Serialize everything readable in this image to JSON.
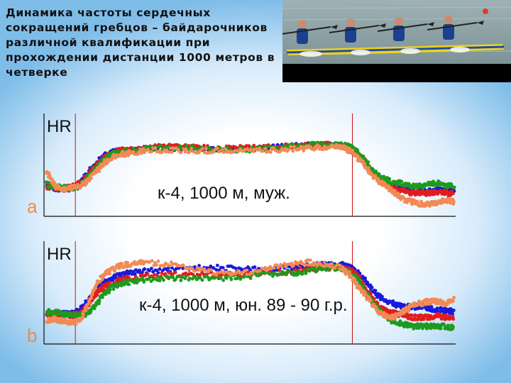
{
  "title": "Динамика частоты сердечных сокращений гребцов – байдарочников различной квалификации при прохождении дистанции 1000 метров в четверке",
  "photo": {
    "icon": "kayak-four-rowers-photo"
  },
  "colors": {
    "blue": "#1a1adc",
    "red": "#e21d1d",
    "green": "#1e9a1e",
    "orange": "#f28a55",
    "marker_line": "#cc1111",
    "panel_label": "#f08a4c"
  },
  "chart_data": [
    {
      "type": "scatter",
      "panel_label": "a",
      "ylabel": "HR",
      "annotation": "к-4, 1000 м, муж.",
      "xlim": [
        0,
        100
      ],
      "ylim": [
        0,
        100
      ],
      "markers_x": [
        7,
        75
      ],
      "series": [
        {
          "color": "#1a1adc",
          "x": [
            0,
            2,
            4,
            6,
            8,
            10,
            12,
            14,
            16,
            18,
            20,
            24,
            30,
            36,
            42,
            48,
            54,
            60,
            64,
            68,
            72,
            74,
            76,
            78,
            80,
            82,
            84,
            86,
            88,
            90,
            92,
            94,
            96,
            98,
            100
          ],
          "y": [
            30,
            28,
            26,
            28,
            32,
            44,
            56,
            64,
            68,
            70,
            70,
            72,
            73,
            72,
            72,
            72,
            73,
            75,
            76,
            77,
            76,
            72,
            66,
            56,
            44,
            36,
            30,
            28,
            26,
            24,
            24,
            24,
            26,
            24,
            26
          ]
        },
        {
          "color": "#e21d1d",
          "x": [
            0,
            2,
            4,
            6,
            8,
            10,
            12,
            14,
            16,
            18,
            20,
            24,
            30,
            36,
            42,
            48,
            54,
            60,
            64,
            68,
            72,
            74,
            76,
            78,
            80,
            82,
            84,
            86,
            88,
            90,
            92,
            94,
            96,
            98,
            100
          ],
          "y": [
            29,
            28,
            27,
            29,
            33,
            42,
            52,
            62,
            66,
            70,
            71,
            73,
            76,
            74,
            72,
            73,
            74,
            75,
            76,
            77,
            76,
            74,
            68,
            58,
            46,
            36,
            30,
            26,
            24,
            22,
            22,
            22,
            24,
            22,
            22
          ]
        },
        {
          "color": "#1e9a1e",
          "x": [
            0,
            2,
            4,
            6,
            8,
            10,
            12,
            14,
            16,
            18,
            20,
            24,
            30,
            36,
            42,
            48,
            54,
            60,
            64,
            68,
            72,
            74,
            76,
            78,
            80,
            82,
            84,
            86,
            88,
            90,
            92,
            94,
            96,
            98,
            100
          ],
          "y": [
            32,
            30,
            28,
            28,
            30,
            40,
            50,
            60,
            66,
            68,
            69,
            72,
            74,
            73,
            72,
            71,
            72,
            75,
            76,
            78,
            77,
            75,
            70,
            60,
            48,
            40,
            36,
            34,
            32,
            30,
            30,
            32,
            34,
            30,
            30
          ]
        },
        {
          "color": "#f28a55",
          "x": [
            0,
            2,
            4,
            6,
            8,
            10,
            12,
            14,
            16,
            18,
            20,
            24,
            30,
            36,
            42,
            48,
            54,
            60,
            64,
            68,
            72,
            74,
            76,
            78,
            80,
            82,
            84,
            86,
            88,
            90,
            92,
            94,
            96,
            98,
            100
          ],
          "y": [
            46,
            30,
            26,
            28,
            30,
            36,
            46,
            56,
            62,
            66,
            67,
            70,
            71,
            70,
            70,
            70,
            70,
            72,
            73,
            74,
            74,
            71,
            64,
            54,
            42,
            34,
            28,
            20,
            14,
            12,
            10,
            10,
            12,
            14,
            12
          ]
        }
      ]
    },
    {
      "type": "scatter",
      "panel_label": "b",
      "ylabel": "HR",
      "annotation": "к-4, 1000 м, юн. 89 - 90 г.р.",
      "xlim": [
        0,
        100
      ],
      "ylim": [
        0,
        100
      ],
      "markers_x": [
        7,
        75
      ],
      "series": [
        {
          "color": "#1a1adc",
          "x": [
            0,
            2,
            4,
            6,
            8,
            10,
            12,
            14,
            16,
            18,
            20,
            24,
            30,
            36,
            42,
            48,
            54,
            60,
            64,
            68,
            72,
            74,
            76,
            78,
            80,
            82,
            84,
            86,
            88,
            90,
            92,
            94,
            96,
            98,
            100
          ],
          "y": [
            30,
            30,
            30,
            30,
            34,
            44,
            56,
            66,
            70,
            74,
            76,
            78,
            80,
            82,
            82,
            80,
            80,
            82,
            84,
            86,
            86,
            84,
            78,
            68,
            56,
            48,
            44,
            40,
            38,
            38,
            38,
            36,
            34,
            34,
            32
          ]
        },
        {
          "color": "#e21d1d",
          "x": [
            0,
            2,
            4,
            6,
            8,
            10,
            12,
            14,
            16,
            18,
            20,
            24,
            30,
            36,
            42,
            48,
            54,
            60,
            64,
            68,
            72,
            74,
            76,
            78,
            80,
            82,
            84,
            86,
            88,
            90,
            92,
            94,
            96,
            98,
            100
          ],
          "y": [
            30,
            30,
            29,
            28,
            30,
            40,
            52,
            60,
            64,
            68,
            70,
            72,
            74,
            74,
            74,
            74,
            76,
            78,
            80,
            82,
            82,
            80,
            74,
            60,
            46,
            36,
            32,
            30,
            28,
            26,
            26,
            26,
            28,
            26,
            26
          ]
        },
        {
          "color": "#1e9a1e",
          "x": [
            0,
            2,
            4,
            6,
            8,
            10,
            12,
            14,
            16,
            18,
            20,
            24,
            30,
            36,
            42,
            48,
            54,
            60,
            64,
            68,
            72,
            74,
            76,
            78,
            80,
            82,
            84,
            86,
            88,
            90,
            92,
            94,
            96,
            98,
            100
          ],
          "y": [
            32,
            32,
            30,
            28,
            28,
            30,
            40,
            52,
            60,
            64,
            66,
            68,
            70,
            70,
            70,
            72,
            74,
            76,
            78,
            82,
            82,
            78,
            70,
            56,
            42,
            32,
            24,
            20,
            18,
            16,
            16,
            16,
            16,
            16,
            14
          ]
        },
        {
          "color": "#f28a55",
          "x": [
            0,
            2,
            4,
            6,
            8,
            10,
            12,
            14,
            16,
            18,
            20,
            24,
            30,
            36,
            42,
            48,
            54,
            60,
            64,
            68,
            72,
            74,
            76,
            78,
            80,
            82,
            84,
            86,
            88,
            90,
            92,
            94,
            96,
            98,
            100
          ],
          "y": [
            22,
            24,
            22,
            20,
            22,
            40,
            62,
            74,
            80,
            84,
            86,
            88,
            86,
            80,
            76,
            76,
            80,
            86,
            88,
            86,
            82,
            76,
            64,
            52,
            40,
            30,
            26,
            28,
            34,
            40,
            42,
            44,
            44,
            42,
            46
          ]
        }
      ]
    }
  ]
}
